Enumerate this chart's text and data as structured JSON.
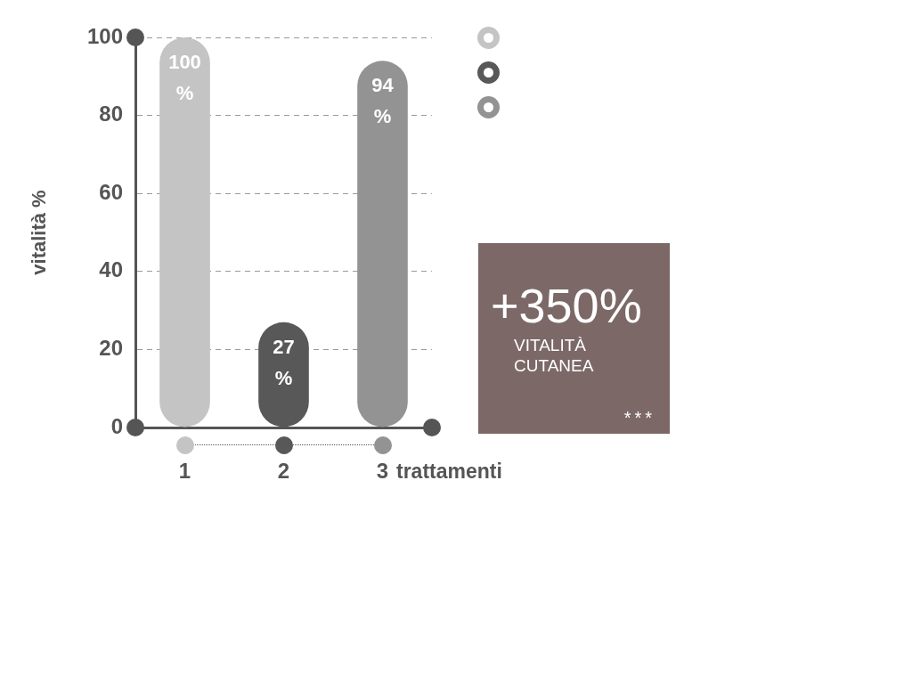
{
  "chart_data": {
    "type": "bar",
    "categories": [
      "1",
      "2",
      "3"
    ],
    "values": [
      100,
      27,
      94
    ],
    "colors": [
      "#c4c4c4",
      "#585858",
      "#939393"
    ],
    "value_labels": [
      "100 %",
      "27 %",
      "94 %"
    ],
    "xlabel": "trattamenti",
    "ylabel": "vitalità %",
    "ylim": [
      0,
      100
    ],
    "yticks": [
      0,
      20,
      40,
      60,
      80,
      100
    ],
    "grid": "y",
    "annotations": [
      "+350%",
      "VITALITÀ CUTANEA",
      "***"
    ]
  }
}
